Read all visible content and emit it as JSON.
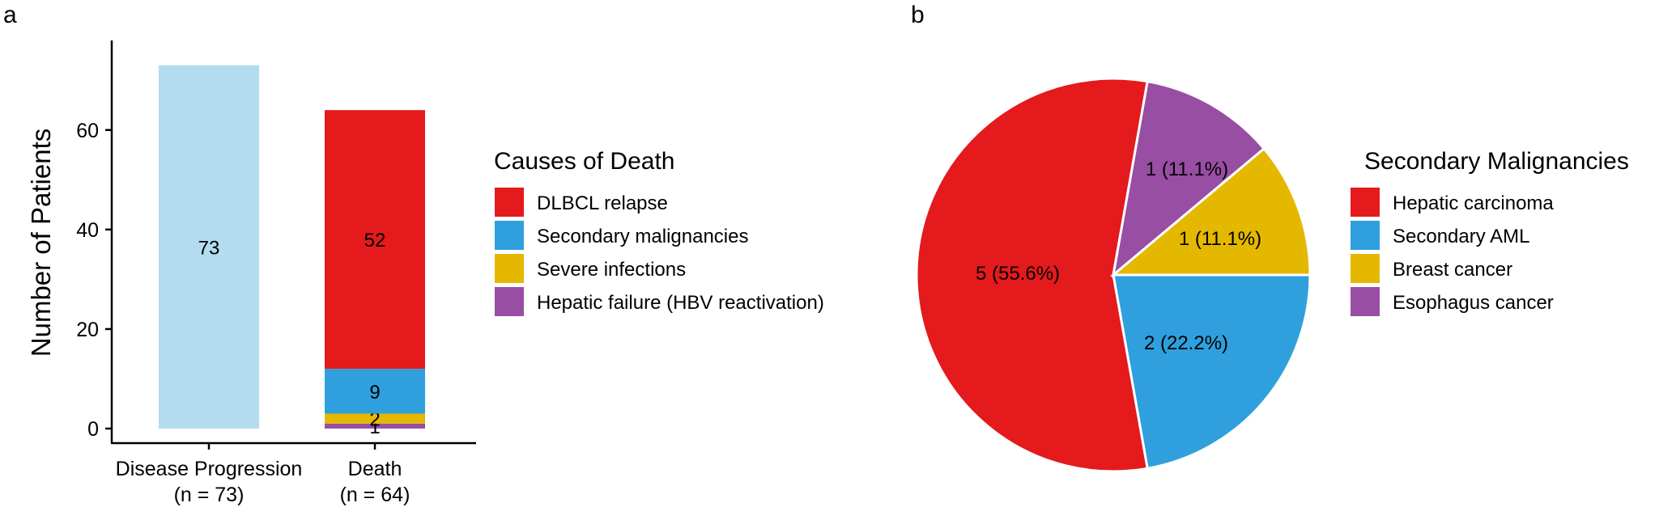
{
  "chart_data": [
    {
      "panel": "a",
      "type": "bar",
      "stacked": true,
      "ylabel": "Number of Patients",
      "xlabel": "",
      "ylim": [
        0,
        78
      ],
      "yticks": [
        "0",
        "20",
        "40",
        "60"
      ],
      "categories": [
        {
          "line1": "Disease Progression",
          "line2": "(n = 73)"
        },
        {
          "line1": "Death",
          "line2": "(n = 64)"
        }
      ],
      "bars": [
        {
          "segments": [
            {
              "value": 73,
              "label": "73",
              "color": "#b3dcf0"
            }
          ]
        },
        {
          "segments": [
            {
              "series": "Hepatic failure (HBV reactivation)",
              "value": 1,
              "label": "1",
              "color": "#984ea3"
            },
            {
              "series": "Severe infections",
              "value": 2,
              "label": "2",
              "color": "#e5b800"
            },
            {
              "series": "Secondary malignancies",
              "value": 9,
              "label": "9",
              "color": "#2fa0dd"
            },
            {
              "series": "DLBCL relapse",
              "value": 52,
              "label": "52",
              "color": "#e41a1c"
            }
          ]
        }
      ],
      "legend": {
        "title": "Causes of Death",
        "position": "right",
        "items": [
          {
            "label": "DLBCL relapse",
            "color": "#e41a1c"
          },
          {
            "label": "Secondary malignancies",
            "color": "#2fa0dd"
          },
          {
            "label": "Severe infections",
            "color": "#e5b800"
          },
          {
            "label": "Hepatic failure (HBV reactivation)",
            "color": "#984ea3"
          }
        ]
      },
      "grid": false
    },
    {
      "panel": "b",
      "type": "pie",
      "slices": [
        {
          "name": "Secondary AML",
          "value": 2,
          "label": "2 (22.2%)",
          "color": "#2fa0dd"
        },
        {
          "name": "Hepatic carcinoma",
          "value": 5,
          "label": "5 (55.6%)",
          "color": "#e41a1c"
        },
        {
          "name": "Esophagus cancer",
          "value": 1,
          "label": "1 (11.1%)",
          "color": "#984ea3"
        },
        {
          "name": "Breast cancer",
          "value": 1,
          "label": "1 (11.1%)",
          "color": "#e5b800"
        }
      ],
      "legend": {
        "title": "Secondary Malignancies",
        "position": "right",
        "items": [
          {
            "label": "Hepatic carcinoma",
            "color": "#e41a1c"
          },
          {
            "label": "Secondary AML",
            "color": "#2fa0dd"
          },
          {
            "label": "Breast cancer",
            "color": "#e5b800"
          },
          {
            "label": "Esophagus cancer",
            "color": "#984ea3"
          }
        ]
      }
    }
  ]
}
